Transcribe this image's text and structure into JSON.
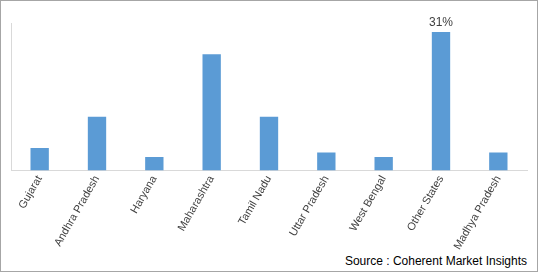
{
  "chart_data": {
    "type": "bar",
    "categories": [
      "Gujarat",
      "Andhra Pradesh",
      "Haryana",
      "Maharashtra",
      "Tamil Nadu",
      "Uttar Pradesh",
      "West Bengal",
      "Other States",
      "Madhya Pradesh"
    ],
    "values": [
      5,
      12,
      3,
      26,
      12,
      4,
      3,
      31,
      4
    ],
    "value_labels": [
      null,
      null,
      null,
      null,
      null,
      null,
      null,
      "31%",
      null
    ],
    "data_labels": true,
    "color": "#5b9bd5",
    "ylim": [
      0,
      33
    ],
    "grid": false,
    "tick_labels": "x",
    "annotations": [
      "Source : Coherent Market Insights"
    ]
  }
}
